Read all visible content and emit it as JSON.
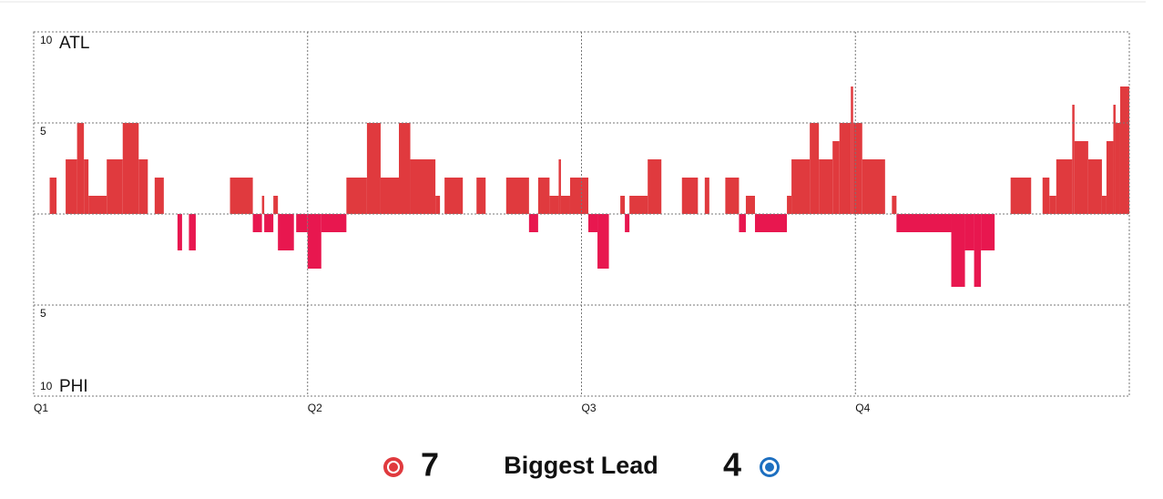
{
  "chart_data": {
    "type": "bar",
    "team_labels": {
      "top": "ATL",
      "bottom": "PHI"
    },
    "x": [
      0.7,
      1.0,
      1.4,
      1.9,
      2.2,
      2.4,
      3.2,
      3.9,
      4.6,
      5.0,
      5.3,
      5.7,
      6.3,
      6.5,
      6.8,
      7.1,
      8.6,
      9.6,
      10.0,
      10.1,
      10.5,
      10.7,
      11.4,
      11.5,
      12.0,
      12.6,
      13.7,
      14.6,
      15.2,
      16.0,
      16.5,
      17.6,
      17.8,
      18.0,
      18.8,
      19.4,
      19.8,
      20.7,
      21.7,
      22.1,
      22.6,
      23.0,
      23.1,
      23.5,
      24.3,
      24.7,
      25.2,
      25.7,
      25.9,
      26.1,
      26.9,
      27.5,
      28.4,
      29.1,
      29.4,
      29.6,
      30.3,
      30.9,
      31.2,
      31.6,
      33.0,
      33.2,
      34.0,
      34.4,
      35.0,
      35.3,
      35.8,
      35.9,
      36.3,
      37.3,
      37.6,
      37.8,
      40.2,
      40.8,
      41.2,
      41.5,
      42.1,
      42.8,
      43.7,
      44.2,
      44.5,
      44.8,
      45.5,
      45.6,
      46.2,
      46.8,
      47.0,
      47.3,
      47.4,
      47.6
    ],
    "values": [
      2,
      0,
      3,
      5,
      3,
      1,
      3,
      5,
      3,
      0,
      2,
      0,
      -2,
      0,
      -2,
      0,
      2,
      -1,
      1,
      -1,
      1,
      -2,
      0,
      -1,
      -3,
      -1,
      2,
      5,
      2,
      5,
      3,
      1,
      0,
      2,
      0,
      2,
      0,
      2,
      -1,
      2,
      1,
      3,
      1,
      2,
      -1,
      -3,
      0,
      1,
      -1,
      1,
      3,
      0,
      2,
      0,
      2,
      0,
      2,
      -1,
      1,
      -1,
      1,
      3,
      5,
      3,
      4,
      5,
      7,
      5,
      3,
      0,
      1,
      -1,
      -4,
      -2,
      -4,
      -2,
      0,
      2,
      0,
      2,
      1,
      3,
      6,
      4,
      3,
      1,
      4,
      6,
      5,
      7
    ],
    "positive_color": "#e03a3e",
    "negative_color": "#e8174f",
    "xlim": [
      0,
      48
    ],
    "xticks": [
      {
        "value": 0,
        "label": "Q1"
      },
      {
        "value": 12,
        "label": "Q2"
      },
      {
        "value": 24,
        "label": "Q3"
      },
      {
        "value": 36,
        "label": "Q4"
      }
    ],
    "ylim": [
      -10,
      10
    ],
    "yticks": [
      {
        "value": -10,
        "label": "10"
      },
      {
        "value": -5,
        "label": "5"
      },
      5,
      10
    ],
    "grid": true
  },
  "summary": {
    "label": "Biggest Lead",
    "home_value": 7,
    "home_color": "#e03a3e",
    "away_value": 4,
    "away_color": "#1d6fc0"
  }
}
